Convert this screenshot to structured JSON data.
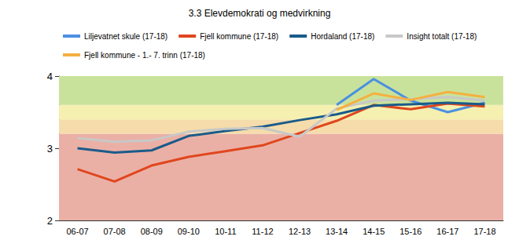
{
  "chart_data": {
    "type": "line",
    "title": "3.3 Elevdemokrati og medvirkning",
    "categories": [
      "06-07",
      "07-08",
      "08-09",
      "09-10",
      "10-11",
      "11-12",
      "12-13",
      "13-14",
      "14-15",
      "15-16",
      "16-17",
      "17-18"
    ],
    "series": [
      {
        "name": "Liljevatnet skule (17-18)",
        "color": "#4a90e2",
        "values": [
          null,
          null,
          null,
          null,
          null,
          null,
          null,
          3.6,
          3.96,
          3.66,
          3.5,
          3.63
        ]
      },
      {
        "name": "Fjell kommune (17-18)",
        "color": "#e0461e",
        "values": [
          2.71,
          2.54,
          2.76,
          2.88,
          2.96,
          3.04,
          3.21,
          3.38,
          3.6,
          3.54,
          3.62,
          3.58
        ]
      },
      {
        "name": "Hordaland (17-18)",
        "color": "#1a5b8a",
        "values": [
          3.0,
          2.94,
          2.97,
          3.17,
          3.24,
          3.3,
          3.39,
          3.47,
          3.59,
          3.61,
          3.63,
          3.61
        ]
      },
      {
        "name": "Insight totalt (17-18)",
        "color": "#c8c8c8",
        "values": [
          3.14,
          3.09,
          3.11,
          3.23,
          3.27,
          3.28,
          3.16,
          3.55,
          3.66,
          3.68,
          3.71,
          3.66
        ]
      },
      {
        "name": "Fjell kommune - 1.- 7. trinn (17-18)",
        "color": "#f5b041",
        "values": [
          null,
          null,
          null,
          null,
          null,
          null,
          null,
          3.53,
          3.76,
          3.67,
          3.78,
          3.71
        ]
      }
    ],
    "bands": [
      {
        "from": 2,
        "to": 3.2,
        "color": "#ebb0a5"
      },
      {
        "from": 3.2,
        "to": 3.4,
        "color": "#f5dcaa"
      },
      {
        "from": 3.4,
        "to": 3.6,
        "color": "#f5f0b0"
      },
      {
        "from": 3.6,
        "to": 4,
        "color": "#c9e29b"
      }
    ],
    "ylim": [
      2,
      4
    ],
    "yticks": [
      2,
      3,
      4
    ],
    "grid": false,
    "legend": "top"
  }
}
